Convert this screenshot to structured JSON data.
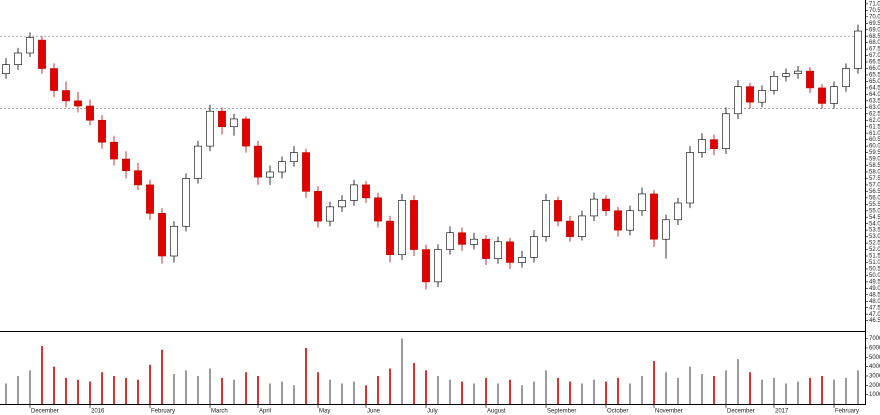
{
  "chart_data": {
    "type": "candlestick",
    "categories": [
      null,
      null,
      "December",
      null,
      null,
      null,
      null,
      "2016",
      null,
      null,
      null,
      null,
      "February",
      null,
      null,
      null,
      null,
      "March",
      null,
      null,
      null,
      "April",
      null,
      null,
      null,
      null,
      "May",
      null,
      null,
      null,
      "June",
      null,
      null,
      null,
      null,
      "July",
      null,
      null,
      null,
      null,
      "August",
      null,
      null,
      null,
      null,
      "September",
      null,
      null,
      null,
      null,
      "October",
      null,
      null,
      null,
      "November",
      null,
      null,
      null,
      null,
      null,
      "December",
      null,
      null,
      null,
      "2017",
      null,
      null,
      null,
      null,
      "February",
      null,
      null
    ],
    "open": [
      65.6,
      66.3,
      67.2,
      68.2,
      66.0,
      64.3,
      63.5,
      63.1,
      62.0,
      60.3,
      59.0,
      58.1,
      57.0,
      54.8,
      51.5,
      53.8,
      57.5,
      60.0,
      62.7,
      61.5,
      62.1,
      60.0,
      57.6,
      58.0,
      58.8,
      59.5,
      56.5,
      54.2,
      55.3,
      55.8,
      57.0,
      56.0,
      54.2,
      51.6,
      55.8,
      52.0,
      49.5,
      52.0,
      53.3,
      52.4,
      52.8,
      51.3,
      52.6,
      51.0,
      51.4,
      53.0,
      55.8,
      54.2,
      53.0,
      54.6,
      55.9,
      55.0,
      53.5,
      55.0,
      56.3,
      52.8,
      54.3,
      55.6,
      59.5,
      60.5,
      59.8,
      62.5,
      64.6,
      63.4,
      64.3,
      65.4,
      65.6,
      65.8,
      64.5,
      63.3,
      64.6,
      66.0
    ],
    "high": [
      66.8,
      67.6,
      68.8,
      68.5,
      66.4,
      65.0,
      64.2,
      63.6,
      62.4,
      60.8,
      59.6,
      58.7,
      57.4,
      55.2,
      54.2,
      57.9,
      60.4,
      63.2,
      63.0,
      62.5,
      62.3,
      60.4,
      58.5,
      59.2,
      60.0,
      59.8,
      56.9,
      55.7,
      56.2,
      57.4,
      57.3,
      56.4,
      54.6,
      56.3,
      56.2,
      52.4,
      52.4,
      53.8,
      53.7,
      53.3,
      53.1,
      53.0,
      52.9,
      51.9,
      53.5,
      56.3,
      56.1,
      54.6,
      55.0,
      56.4,
      56.2,
      55.3,
      55.4,
      56.8,
      56.6,
      54.7,
      56.0,
      60.0,
      61.0,
      60.9,
      63.0,
      65.1,
      64.9,
      64.7,
      65.8,
      66.0,
      66.2,
      66.1,
      64.8,
      65.0,
      66.4,
      69.4
    ],
    "low": [
      65.2,
      65.9,
      66.9,
      65.6,
      63.8,
      63.0,
      62.6,
      61.6,
      59.8,
      58.5,
      57.5,
      56.6,
      54.3,
      50.9,
      51.0,
      53.4,
      57.1,
      59.6,
      60.9,
      60.8,
      59.5,
      57.0,
      57.0,
      57.5,
      58.4,
      56.0,
      53.7,
      53.8,
      54.9,
      55.4,
      55.6,
      53.7,
      51.0,
      51.2,
      51.5,
      48.9,
      49.1,
      51.6,
      51.9,
      52.0,
      50.8,
      50.9,
      50.5,
      50.6,
      51.0,
      52.6,
      53.8,
      52.6,
      52.7,
      54.2,
      54.6,
      53.0,
      53.1,
      54.6,
      52.2,
      51.3,
      53.9,
      55.2,
      59.1,
      59.3,
      59.4,
      62.1,
      62.9,
      63.0,
      64.0,
      65.0,
      65.2,
      64.1,
      62.9,
      62.9,
      64.2,
      65.6
    ],
    "close": [
      66.3,
      67.2,
      68.4,
      66.0,
      64.3,
      63.5,
      63.1,
      62.0,
      60.3,
      59.0,
      58.1,
      57.0,
      54.8,
      51.5,
      53.8,
      57.5,
      60.0,
      62.7,
      61.5,
      62.1,
      60.0,
      57.6,
      58.0,
      58.8,
      59.5,
      56.5,
      54.2,
      55.3,
      55.8,
      57.0,
      56.0,
      54.2,
      51.6,
      55.8,
      52.0,
      49.5,
      52.0,
      53.3,
      52.4,
      52.8,
      51.3,
      52.6,
      51.0,
      51.4,
      53.0,
      55.8,
      54.2,
      53.0,
      54.6,
      55.9,
      55.0,
      53.5,
      55.0,
      56.3,
      52.8,
      54.3,
      55.6,
      59.5,
      60.5,
      59.8,
      62.5,
      64.6,
      63.4,
      64.3,
      65.4,
      65.6,
      65.8,
      64.5,
      63.3,
      64.6,
      66.0,
      68.9
    ],
    "volume": [
      22000,
      30000,
      36000,
      62000,
      40000,
      28000,
      26000,
      24000,
      34000,
      30000,
      28000,
      26000,
      42000,
      58000,
      32000,
      36000,
      30000,
      38000,
      28000,
      26000,
      34000,
      30000,
      22000,
      24000,
      20000,
      60000,
      34000,
      26000,
      22000,
      24000,
      20000,
      30000,
      38000,
      70000,
      44000,
      36000,
      30000,
      26000,
      24000,
      22000,
      28000,
      22000,
      26000,
      20000,
      24000,
      36000,
      28000,
      24000,
      22000,
      26000,
      24000,
      28000,
      22000,
      30000,
      46000,
      34000,
      28000,
      40000,
      32000,
      30000,
      36000,
      48000,
      34000,
      26000,
      28000,
      22000,
      24000,
      28000,
      30000,
      26000,
      28000,
      36000
    ],
    "up_color": "#ffffff",
    "down_color": "#e00000",
    "volume_up_color": "#9a9a9a",
    "volume_down_color": "#e03030",
    "hlines": [
      68.5,
      62.9
    ],
    "ylim": [
      45.7,
      71.3
    ],
    "yticks": [
      46.5,
      {
        "value": 47,
        "label": "47.0"
      },
      47.5,
      {
        "value": 48,
        "label": "48.0"
      },
      48.5,
      {
        "value": 49,
        "label": "49.0"
      },
      49.5,
      {
        "value": 50,
        "label": "50.0"
      },
      50.5,
      {
        "value": 51,
        "label": "51.0"
      },
      51.5,
      {
        "value": 52,
        "label": "52.0"
      },
      52.5,
      {
        "value": 53,
        "label": "53.0"
      },
      53.5,
      {
        "value": 54,
        "label": "54.0"
      },
      54.5,
      {
        "value": 55,
        "label": "55.0"
      },
      55.5,
      {
        "value": 56,
        "label": "56.0"
      },
      56.5,
      {
        "value": 57,
        "label": "57.0"
      },
      57.5,
      {
        "value": 58,
        "label": "58.0"
      },
      58.5,
      {
        "value": 59,
        "label": "59.0"
      },
      59.5,
      {
        "value": 60,
        "label": "60.0"
      },
      60.5,
      {
        "value": 61,
        "label": "61.0"
      },
      61.5,
      {
        "value": 62,
        "label": "62.0"
      },
      62.5,
      {
        "value": 63,
        "label": "63.0"
      },
      63.5,
      {
        "value": 64,
        "label": "64.0"
      },
      64.5,
      {
        "value": 65,
        "label": "65.0"
      },
      65.5,
      {
        "value": 66,
        "label": "66.0"
      },
      66.5,
      {
        "value": 67,
        "label": "67.0"
      },
      67.5,
      {
        "value": 68,
        "label": "68.0"
      },
      68.5,
      {
        "value": 69,
        "label": "69.0"
      },
      69.5,
      {
        "value": 70,
        "label": "70.0"
      },
      70.5,
      {
        "value": 71,
        "label": "71.0"
      }
    ],
    "y2lim": [
      0,
      76000
    ],
    "y2ticks": [
      10000,
      20000,
      30000,
      40000,
      50000,
      60000,
      70000
    ]
  }
}
